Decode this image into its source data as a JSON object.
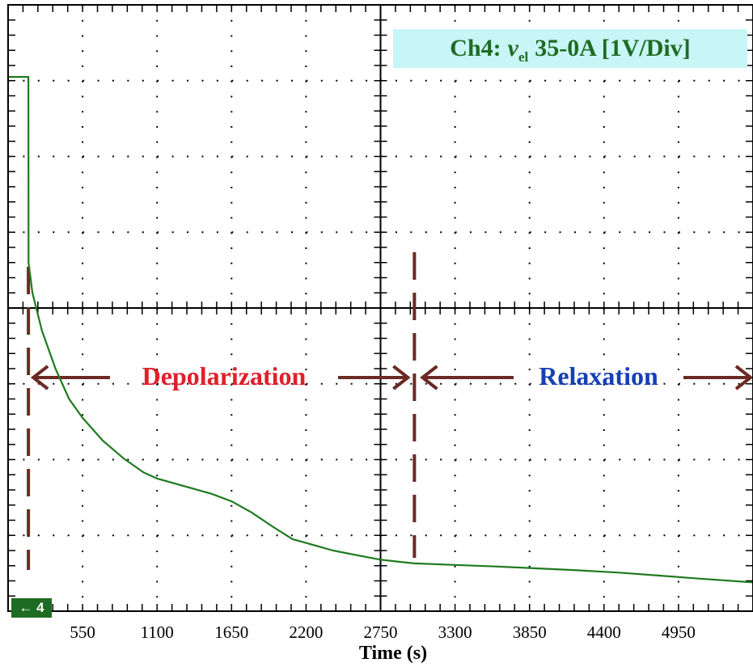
{
  "chart_data": {
    "type": "line",
    "channel_label": {
      "prefix": "Ch4:",
      "symbol": "v",
      "subscript": "el",
      "rest": "35-0A [1V/Div]"
    },
    "xlabel": "Time (s)",
    "x_ticks": [
      550,
      1100,
      1650,
      2200,
      2750,
      3300,
      3850,
      4400,
      4950
    ],
    "xlim": [
      0,
      5500
    ],
    "ylim": [
      -4,
      4
    ],
    "y_unit_per_div": "1V/Div",
    "grid": true,
    "ground_marker": "4",
    "regions": [
      {
        "label": "Depolarization",
        "color": "#e0202a",
        "start": 150,
        "end": 3000
      },
      {
        "label": "Relaxation",
        "color": "#1640b4",
        "start": 3000,
        "end": 5500
      }
    ],
    "region_arrow_color": "#6b2a24",
    "series": [
      {
        "color": "#1e7a1e",
        "x": [
          0,
          150,
          151,
          180,
          250,
          350,
          450,
          550,
          700,
          850,
          1000,
          1100,
          1300,
          1500,
          1650,
          1800,
          1950,
          2100,
          2200,
          2400,
          2600,
          2750,
          2900,
          3000,
          3300,
          3600,
          3850,
          4200,
          4500,
          4800,
          5100,
          5500
        ],
        "y": [
          3.05,
          3.05,
          0.6,
          0.2,
          -0.3,
          -0.8,
          -1.2,
          -1.45,
          -1.75,
          -1.98,
          -2.17,
          -2.25,
          -2.35,
          -2.45,
          -2.55,
          -2.7,
          -2.88,
          -3.05,
          -3.1,
          -3.2,
          -3.27,
          -3.32,
          -3.35,
          -3.37,
          -3.39,
          -3.41,
          -3.43,
          -3.46,
          -3.49,
          -3.53,
          -3.57,
          -3.62
        ]
      }
    ]
  }
}
